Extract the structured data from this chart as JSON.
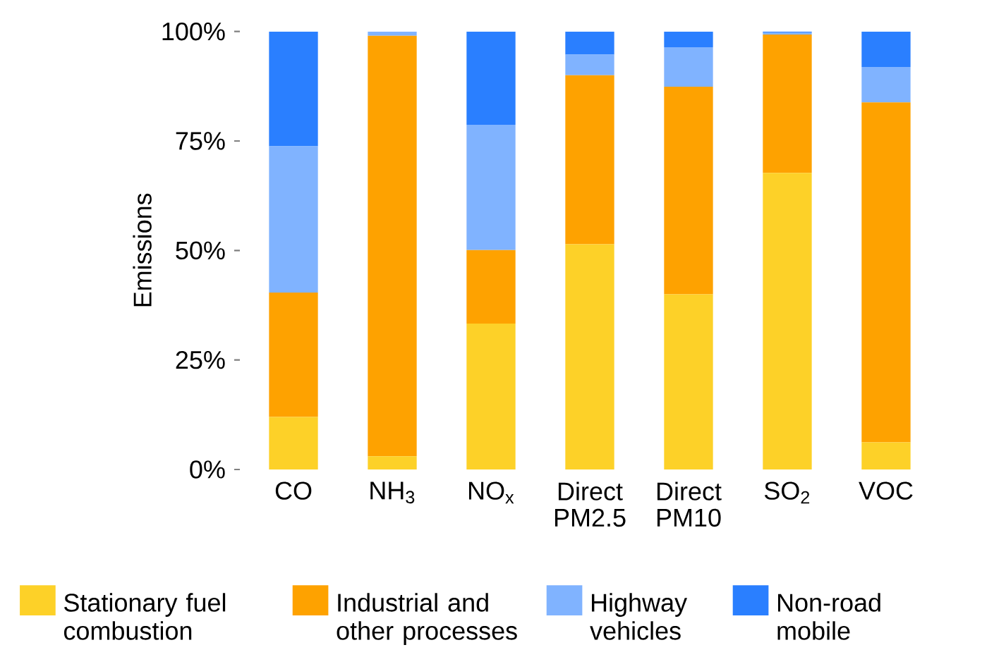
{
  "chart_data": {
    "type": "bar",
    "stacked": true,
    "ylabel": "Emissions",
    "categories": [
      "CO",
      "NH$_{3}$",
      "NO$_{x}$",
      "Direct PM2.5",
      "Direct PM10",
      "SO$_{2}$",
      "VOC"
    ],
    "ylim": [
      0,
      100
    ],
    "yticks": [
      {
        "value": 0,
        "label": "0%"
      },
      {
        "value": 25,
        "label": "25%"
      },
      {
        "value": 50,
        "label": "50%"
      },
      {
        "value": 75,
        "label": "75%"
      },
      {
        "value": 100,
        "label": "100%"
      }
    ],
    "legend": "bottom",
    "grid": false,
    "series": [
      {
        "name": "Stationary fuel combustion",
        "color": "#fdd128",
        "values": [
          12.0,
          3.0,
          33.3,
          51.4,
          40.0,
          67.7,
          6.2
        ]
      },
      {
        "name": "Industrial and other processes",
        "color": "#fea200",
        "values": [
          28.4,
          96.0,
          16.8,
          38.6,
          47.4,
          31.6,
          77.6
        ]
      },
      {
        "name": "Highway vehicles",
        "color": "#80b3ff",
        "values": [
          33.4,
          1.0,
          28.6,
          4.7,
          9.0,
          0.4,
          8.1
        ]
      },
      {
        "name": "Non-road mobile",
        "color": "#2a7fff",
        "values": [
          26.2,
          0.0,
          21.3,
          5.3,
          3.6,
          0.3,
          8.1
        ]
      }
    ]
  }
}
